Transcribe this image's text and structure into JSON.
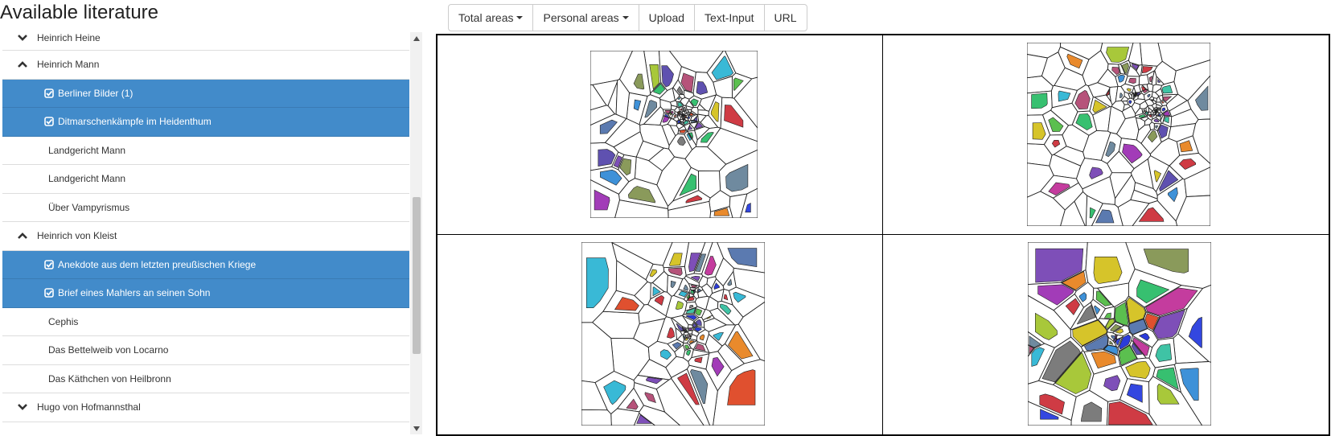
{
  "header": {
    "title": "Available literature"
  },
  "toolbar": {
    "buttons": [
      {
        "label": "Total areas",
        "dropdown": true
      },
      {
        "label": "Personal areas",
        "dropdown": true
      },
      {
        "label": "Upload",
        "dropdown": false
      },
      {
        "label": "Text-Input",
        "dropdown": false
      },
      {
        "label": "URL",
        "dropdown": false
      }
    ]
  },
  "tree": {
    "rows": [
      {
        "type": "author",
        "label": "Heinrich Heine",
        "expanded": false,
        "selected": false
      },
      {
        "type": "author",
        "label": "Heinrich Mann",
        "expanded": true,
        "selected": false
      },
      {
        "type": "work",
        "label": "Berliner Bilder (1)",
        "selected": true
      },
      {
        "type": "work",
        "label": "Ditmarschenkämpfe im Heidenthum",
        "selected": true
      },
      {
        "type": "work",
        "label": "Landgericht Mann",
        "selected": false
      },
      {
        "type": "work",
        "label": "Landgericht Mann",
        "selected": false
      },
      {
        "type": "work",
        "label": "Über Vampyrismus",
        "selected": false
      },
      {
        "type": "author",
        "label": "Heinrich von Kleist",
        "expanded": true,
        "selected": false
      },
      {
        "type": "work",
        "label": "Anekdote aus dem letzten preußischen Kriege",
        "selected": true
      },
      {
        "type": "work",
        "label": "Brief eines Mahlers an seinen Sohn",
        "selected": true
      },
      {
        "type": "work",
        "label": "Cephis",
        "selected": false
      },
      {
        "type": "work",
        "label": "Das Bettelweib von Locarno",
        "selected": false
      },
      {
        "type": "work",
        "label": "Das Käthchen von Heilbronn",
        "selected": false
      },
      {
        "type": "author",
        "label": "Hugo von Hofmannsthal",
        "expanded": false,
        "selected": false
      }
    ]
  },
  "colors": {
    "selected_bg": "#428bca",
    "palette": [
      "#2b3bdb",
      "#3347e0",
      "#5f51b0",
      "#7e4fb8",
      "#a23cb8",
      "#c43c9e",
      "#b6537a",
      "#cf3b44",
      "#e0502f",
      "#e98a2c",
      "#d6c42a",
      "#a8c83a",
      "#5bbf4f",
      "#37c070",
      "#3fc3a5",
      "#39b9d6",
      "#3e91d8",
      "#5b7ab0",
      "#6f8a9f",
      "#7c7c7c",
      "#8a9a5b"
    ]
  },
  "icons": {
    "chevron_down": "chevron-down-icon",
    "chevron_up": "chevron-up-icon",
    "checked": "check-square-icon"
  }
}
